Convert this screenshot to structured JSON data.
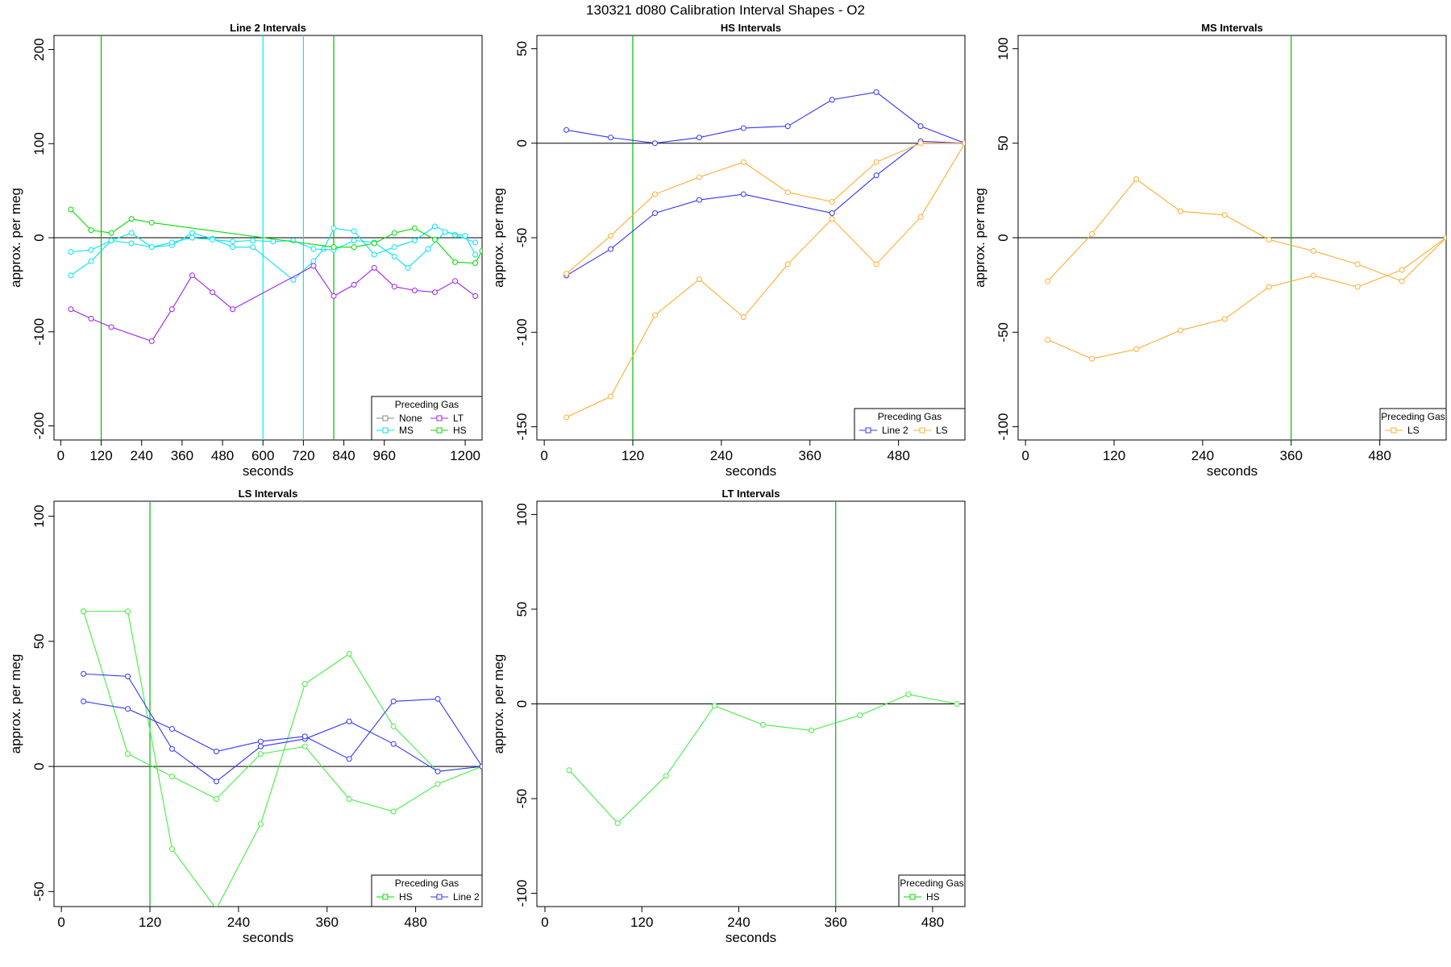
{
  "page_title": "130321   d080   Calibration Interval Shapes - O2",
  "chart_data": [
    {
      "type": "line",
      "title": "Line 2 Intervals",
      "xlabel": "seconds",
      "ylabel": "approx. per meg",
      "xlim": [
        -20,
        1250
      ],
      "ylim": [
        -215,
        215
      ],
      "xticks": [
        0,
        120,
        240,
        360,
        480,
        600,
        720,
        840,
        960,
        1200
      ],
      "yticks": [
        -200,
        -100,
        0,
        100,
        200
      ],
      "hlines": [
        0
      ],
      "vlines": [
        {
          "x": 120,
          "color": "#00bb00"
        },
        {
          "x": 600,
          "color": "#00eeee"
        },
        {
          "x": 720,
          "color": "#00eeee"
        },
        {
          "x": 810,
          "color": "#00bb00"
        }
      ],
      "legend": {
        "title": "Preceding Gas",
        "position": "bottom-right",
        "columns": 2,
        "entries": [
          {
            "name": "None",
            "color": "#888888"
          },
          {
            "name": "LT",
            "color": "#a020f0"
          },
          {
            "name": "MS",
            "color": "#00e5ee"
          },
          {
            "name": "HS",
            "color": "#00dd00"
          }
        ]
      },
      "series": [
        {
          "name": "MS",
          "color": "#00e5ee",
          "points": [
            [
              30,
              -15
            ],
            [
              90,
              -13
            ],
            [
              150,
              -3
            ],
            [
              210,
              -6
            ],
            [
              270,
              -10
            ],
            [
              330,
              -8
            ],
            [
              390,
              5
            ],
            [
              450,
              -1
            ],
            [
              510,
              -10
            ],
            [
              570,
              -10
            ],
            [
              690,
              -45
            ],
            [
              750,
              -25
            ],
            [
              780,
              -12
            ],
            [
              810,
              10
            ],
            [
              870,
              7
            ],
            [
              930,
              -18
            ],
            [
              990,
              -10
            ],
            [
              1050,
              -3
            ],
            [
              1110,
              12
            ],
            [
              1170,
              3
            ],
            [
              1230,
              -5
            ]
          ]
        },
        {
          "name": "MS",
          "color": "#00e5ee",
          "points": [
            [
              30,
              -40
            ],
            [
              90,
              -25
            ],
            [
              150,
              -3
            ],
            [
              210,
              5
            ],
            [
              270,
              -10
            ],
            [
              330,
              -5
            ],
            [
              390,
              0
            ],
            [
              450,
              -2
            ],
            [
              510,
              -4
            ],
            [
              570,
              -3
            ],
            [
              630,
              -4
            ],
            [
              690,
              -3
            ],
            [
              750,
              -12
            ],
            [
              810,
              -13
            ],
            [
              870,
              -3
            ],
            [
              930,
              -5
            ],
            [
              990,
              -20
            ],
            [
              1030,
              -32
            ],
            [
              1090,
              -12
            ],
            [
              1140,
              6
            ],
            [
              1200,
              2
            ],
            [
              1230,
              -18
            ]
          ]
        },
        {
          "name": "LT",
          "color": "#a020f0",
          "points": [
            [
              30,
              -76
            ],
            [
              90,
              -86
            ],
            [
              150,
              -95
            ],
            [
              270,
              -110
            ],
            [
              330,
              -76
            ],
            [
              390,
              -40
            ],
            [
              450,
              -58
            ],
            [
              510,
              -76
            ],
            [
              750,
              -30
            ],
            [
              810,
              -62
            ],
            [
              870,
              -50
            ],
            [
              930,
              -32
            ],
            [
              990,
              -52
            ],
            [
              1050,
              -56
            ],
            [
              1110,
              -58
            ],
            [
              1170,
              -46
            ],
            [
              1230,
              -62
            ]
          ]
        },
        {
          "name": "HS",
          "color": "#00dd00",
          "points": [
            [
              30,
              30
            ],
            [
              90,
              8
            ],
            [
              150,
              5
            ],
            [
              210,
              20
            ],
            [
              270,
              16
            ],
            [
              810,
              -10
            ],
            [
              870,
              -10
            ],
            [
              930,
              -6
            ],
            [
              990,
              5
            ],
            [
              1050,
              10
            ],
            [
              1110,
              -2
            ],
            [
              1170,
              -26
            ],
            [
              1230,
              -27
            ],
            [
              1250,
              -14
            ]
          ]
        }
      ]
    },
    {
      "type": "line",
      "title": "HS Intervals",
      "xlabel": "seconds",
      "ylabel": "approx. per meg",
      "xlim": [
        -10,
        570
      ],
      "ylim": [
        -157,
        57
      ],
      "xticks": [
        0,
        120,
        240,
        360,
        480
      ],
      "yticks": [
        -150,
        -100,
        -50,
        0,
        50
      ],
      "hlines": [
        0
      ],
      "vlines": [
        {
          "x": 120,
          "color": "#00bb00"
        }
      ],
      "legend": {
        "title": "Preceding Gas",
        "position": "bottom-right",
        "columns": 2,
        "entries": [
          {
            "name": "Line 2",
            "color": "#3333ff"
          },
          {
            "name": "LS",
            "color": "#ffad33"
          }
        ]
      },
      "series": [
        {
          "name": "Line 2",
          "color": "#3333ff",
          "points": [
            [
              30,
              7
            ],
            [
              90,
              3
            ],
            [
              150,
              0
            ],
            [
              210,
              3
            ],
            [
              270,
              8
            ],
            [
              330,
              9
            ],
            [
              390,
              23
            ],
            [
              450,
              27
            ],
            [
              510,
              9
            ],
            [
              570,
              0
            ]
          ]
        },
        {
          "name": "Line 2",
          "color": "#3333ff",
          "points": [
            [
              30,
              -70
            ],
            [
              90,
              -56
            ],
            [
              150,
              -37
            ],
            [
              210,
              -30
            ],
            [
              270,
              -27
            ],
            [
              390,
              -37
            ],
            [
              450,
              -17
            ],
            [
              510,
              1
            ],
            [
              570,
              0
            ]
          ]
        },
        {
          "name": "LS",
          "color": "#ffad33",
          "points": [
            [
              30,
              -69
            ],
            [
              90,
              -49
            ],
            [
              150,
              -27
            ],
            [
              210,
              -18
            ],
            [
              270,
              -10
            ],
            [
              330,
              -26
            ],
            [
              390,
              -31
            ],
            [
              450,
              -10
            ],
            [
              510,
              0
            ],
            [
              570,
              0
            ]
          ]
        },
        {
          "name": "LS",
          "color": "#ffad33",
          "points": [
            [
              30,
              -145
            ],
            [
              90,
              -134
            ],
            [
              150,
              -91
            ],
            [
              210,
              -72
            ],
            [
              270,
              -92
            ],
            [
              330,
              -64
            ],
            [
              390,
              -40
            ],
            [
              450,
              -64
            ],
            [
              510,
              -39
            ],
            [
              570,
              0
            ]
          ]
        }
      ]
    },
    {
      "type": "line",
      "title": "MS Intervals",
      "xlabel": "seconds",
      "ylabel": "approx. per meg",
      "xlim": [
        -10,
        570
      ],
      "ylim": [
        -107,
        107
      ],
      "xticks": [
        0,
        120,
        240,
        360,
        480
      ],
      "yticks": [
        -100,
        -50,
        0,
        50,
        100
      ],
      "hlines": [
        0
      ],
      "vlines": [
        {
          "x": 360,
          "color": "#00bb00"
        }
      ],
      "legend": {
        "title": "Preceding Gas",
        "position": "bottom-right",
        "columns": 1,
        "entries": [
          {
            "name": "LS",
            "color": "#ffad33"
          }
        ]
      },
      "series": [
        {
          "name": "LS",
          "color": "#ffad33",
          "points": [
            [
              30,
              -23
            ],
            [
              90,
              2
            ],
            [
              150,
              31
            ],
            [
              210,
              14
            ],
            [
              270,
              12
            ],
            [
              330,
              -1
            ],
            [
              390,
              -7
            ],
            [
              450,
              -14
            ],
            [
              510,
              -23
            ],
            [
              570,
              0
            ]
          ]
        },
        {
          "name": "LS",
          "color": "#ffad33",
          "points": [
            [
              30,
              -54
            ],
            [
              90,
              -64
            ],
            [
              150,
              -59
            ],
            [
              210,
              -49
            ],
            [
              270,
              -43
            ],
            [
              330,
              -26
            ],
            [
              390,
              -20
            ],
            [
              450,
              -26
            ],
            [
              510,
              -17
            ],
            [
              570,
              0
            ]
          ]
        }
      ]
    },
    {
      "type": "line",
      "title": "LS Intervals",
      "xlabel": "seconds",
      "ylabel": "approx. per meg",
      "xlim": [
        -10,
        570
      ],
      "ylim": [
        -56,
        106
      ],
      "xticks": [
        0,
        120,
        240,
        360,
        480
      ],
      "yticks": [
        -50,
        0,
        50,
        100
      ],
      "hlines": [
        0
      ],
      "vlines": [
        {
          "x": 120,
          "color": "#00bb00"
        }
      ],
      "legend": {
        "title": "Preceding Gas",
        "position": "bottom-right",
        "columns": 2,
        "entries": [
          {
            "name": "HS",
            "color": "#00dd00"
          },
          {
            "name": "Line 2",
            "color": "#3333ff"
          }
        ]
      },
      "series": [
        {
          "name": "HS",
          "color": "#44ee44",
          "points": [
            [
              30,
              62
            ],
            [
              90,
              62
            ],
            [
              150,
              -33
            ],
            [
              210,
              -57
            ],
            [
              270,
              -23
            ],
            [
              330,
              33
            ],
            [
              390,
              45
            ],
            [
              450,
              16
            ],
            [
              510,
              -2
            ],
            [
              570,
              0
            ]
          ]
        },
        {
          "name": "HS",
          "color": "#44ee44",
          "points": [
            [
              30,
              62
            ],
            [
              90,
              5
            ],
            [
              150,
              -4
            ],
            [
              210,
              -13
            ],
            [
              270,
              5
            ],
            [
              330,
              8
            ],
            [
              390,
              -13
            ],
            [
              450,
              -18
            ],
            [
              510,
              -7
            ],
            [
              570,
              0
            ]
          ]
        },
        {
          "name": "Line 2",
          "color": "#3333ff",
          "points": [
            [
              30,
              37
            ],
            [
              90,
              36
            ],
            [
              150,
              7
            ],
            [
              210,
              -6
            ],
            [
              270,
              8
            ],
            [
              330,
              11
            ],
            [
              390,
              18
            ],
            [
              450,
              9
            ],
            [
              510,
              -2
            ],
            [
              570,
              0
            ]
          ]
        },
        {
          "name": "Line 2",
          "color": "#3333ff",
          "points": [
            [
              30,
              26
            ],
            [
              90,
              23
            ],
            [
              150,
              15
            ],
            [
              210,
              6
            ],
            [
              270,
              10
            ],
            [
              330,
              12
            ],
            [
              390,
              3
            ],
            [
              450,
              26
            ],
            [
              510,
              27
            ],
            [
              570,
              0
            ]
          ]
        }
      ]
    },
    {
      "type": "line",
      "title": "LT Intervals",
      "xlabel": "seconds",
      "ylabel": "approx. per meg",
      "xlim": [
        -10,
        520
      ],
      "ylim": [
        -107,
        107
      ],
      "xticks": [
        0,
        120,
        240,
        360,
        480
      ],
      "yticks": [
        -100,
        -50,
        0,
        50,
        100
      ],
      "hlines": [
        0
      ],
      "vlines": [
        {
          "x": 360,
          "color": "#00bb00"
        }
      ],
      "legend": {
        "title": "Preceding Gas",
        "position": "bottom-right",
        "columns": 1,
        "entries": [
          {
            "name": "HS",
            "color": "#00dd00"
          }
        ]
      },
      "series": [
        {
          "name": "HS",
          "color": "#44ee44",
          "points": [
            [
              30,
              -35
            ],
            [
              90,
              -63
            ],
            [
              150,
              -38
            ],
            [
              210,
              -1
            ],
            [
              270,
              -11
            ],
            [
              330,
              -14
            ],
            [
              390,
              -6
            ],
            [
              450,
              5
            ],
            [
              510,
              0
            ]
          ]
        }
      ]
    }
  ]
}
